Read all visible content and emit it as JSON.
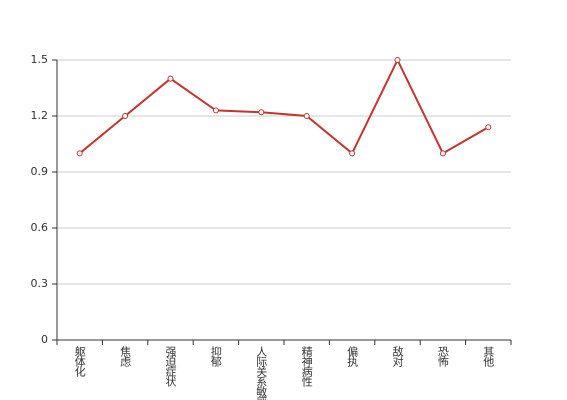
{
  "chart_data": {
    "type": "line",
    "categories": [
      "躯体化",
      "焦虑",
      "强迫症状",
      "抑郁",
      "人际关系敏感",
      "精神病性",
      "偏执",
      "敌对",
      "恐怖",
      "其他"
    ],
    "series": [
      {
        "color": "#c23531",
        "values": [
          1.0,
          1.2,
          1.4,
          1.23,
          1.22,
          1.2,
          1.0,
          1.5,
          1.0,
          1.14
        ]
      }
    ],
    "ylim": [
      0,
      1.5
    ],
    "yticks": [
      0,
      0.3,
      0.6,
      0.9,
      1.2,
      1.5
    ],
    "grid": true
  }
}
